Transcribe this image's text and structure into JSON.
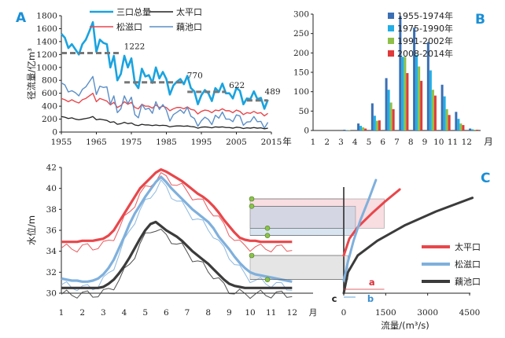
{
  "chart_data": [
    {
      "panel": "A",
      "type": "line",
      "ylabel": "径流量/亿m³",
      "x_unit": "年",
      "xlim": [
        1955,
        2015
      ],
      "ylim": [
        0,
        1800
      ],
      "x_ticks": [
        1955,
        1965,
        1975,
        1985,
        1995,
        2005,
        2015
      ],
      "y_ticks": [
        0,
        200,
        400,
        600,
        800,
        1000,
        1200,
        1400,
        1600,
        1800
      ],
      "series": [
        {
          "name": "三口总量",
          "color": "#1aa3df",
          "x_start": 1955,
          "values": [
            1520,
            1460,
            1300,
            1360,
            1280,
            1200,
            1360,
            1430,
            1560,
            1700,
            1240,
            1430,
            1380,
            1360,
            1000,
            1180,
            800,
            900,
            1180,
            1000,
            1140,
            760,
            680,
            980,
            860,
            880,
            760,
            1000,
            830,
            930,
            820,
            580,
            720,
            780,
            820,
            740,
            870,
            680,
            630,
            430,
            570,
            650,
            600,
            480,
            680,
            620,
            750,
            600,
            600,
            520,
            680,
            640,
            430,
            520,
            510,
            630,
            510,
            530,
            360,
            500
          ]
        },
        {
          "name": "松滋口",
          "color": "#e8474b",
          "x_start": 1955,
          "values": [
            520,
            500,
            470,
            500,
            470,
            450,
            500,
            520,
            560,
            600,
            470,
            520,
            500,
            480,
            420,
            460,
            380,
            410,
            470,
            430,
            460,
            380,
            360,
            430,
            400,
            400,
            370,
            420,
            380,
            400,
            380,
            330,
            360,
            380,
            380,
            360,
            390,
            350,
            340,
            280,
            320,
            340,
            330,
            300,
            340,
            330,
            360,
            330,
            330,
            300,
            340,
            320,
            270,
            300,
            290,
            320,
            290,
            300,
            250,
            290
          ]
        },
        {
          "name": "太平口",
          "color": "#222222",
          "x_start": 1955,
          "values": [
            240,
            230,
            210,
            220,
            200,
            190,
            200,
            210,
            220,
            240,
            190,
            200,
            190,
            180,
            150,
            160,
            120,
            130,
            150,
            130,
            140,
            110,
            100,
            120,
            110,
            110,
            100,
            110,
            100,
            105,
            100,
            80,
            90,
            95,
            95,
            90,
            95,
            85,
            80,
            60,
            75,
            80,
            75,
            65,
            80,
            75,
            80,
            70,
            70,
            60,
            75,
            70,
            55,
            65,
            60,
            70,
            60,
            65,
            50,
            60
          ]
        },
        {
          "name": "藕池口",
          "color": "#5b8fc7",
          "x_start": 1955,
          "values": [
            760,
            730,
            620,
            640,
            610,
            560,
            660,
            700,
            780,
            860,
            580,
            710,
            690,
            700,
            430,
            560,
            300,
            360,
            560,
            440,
            540,
            270,
            220,
            430,
            350,
            370,
            290,
            470,
            350,
            425,
            340,
            170,
            270,
            305,
            345,
            290,
            385,
            245,
            210,
            90,
            175,
            230,
            195,
            115,
            260,
            215,
            310,
            200,
            200,
            160,
            265,
            250,
            105,
            155,
            160,
            240,
            160,
            165,
            60,
            150
          ]
        }
      ],
      "annotations": [
        {
          "text": "1222",
          "value": 1222,
          "from": 1955,
          "to": 1972
        },
        {
          "text": "770",
          "value": 770,
          "from": 1973,
          "to": 1990
        },
        {
          "text": "622",
          "value": 622,
          "from": 1991,
          "to": 2002
        },
        {
          "text": "489",
          "value": 489,
          "from": 2008,
          "to": 2014
        }
      ]
    },
    {
      "panel": "B",
      "type": "bar",
      "x_unit": "月",
      "categories": [
        "1",
        "2",
        "3",
        "4",
        "5",
        "6",
        "7",
        "8",
        "9",
        "10",
        "11",
        "12"
      ],
      "ylim": [
        0,
        300
      ],
      "y_ticks": [
        0,
        50,
        100,
        150,
        200,
        250,
        300
      ],
      "legend_position": "top-right",
      "series": [
        {
          "name": "1955-1974年",
          "color": "#3a6fb5",
          "values": [
            0,
            0,
            2,
            18,
            70,
            135,
            295,
            265,
            228,
            118,
            48,
            5
          ]
        },
        {
          "name": "1975-1990年",
          "color": "#22aee6",
          "values": [
            0,
            0,
            1,
            12,
            38,
            105,
            190,
            195,
            155,
            88,
            30,
            3
          ]
        },
        {
          "name": "1991-2002年",
          "color": "#8fc04a",
          "values": [
            0,
            0,
            1,
            8,
            25,
            72,
            190,
            165,
            105,
            55,
            18,
            2
          ]
        },
        {
          "name": "2008-2014年",
          "color": "#e03a3a",
          "values": [
            0,
            0,
            0,
            5,
            26,
            55,
            148,
            128,
            90,
            40,
            14,
            2
          ]
        }
      ]
    },
    {
      "panel": "C",
      "type": "line",
      "ylabel": "水位/m",
      "xlabel": "流量/(m³/s)",
      "ylim": [
        30,
        42
      ],
      "y_ticks": [
        30,
        32,
        34,
        36,
        38,
        40,
        42
      ],
      "month_ticks": [
        "1",
        "2",
        "3",
        "4",
        "5",
        "6",
        "7",
        "8",
        "9",
        "10",
        "11",
        "12",
        "月"
      ],
      "flow_ticks": [
        0,
        1500,
        3000,
        4500
      ],
      "flow_xlim": [
        0,
        4800
      ],
      "legend_position": "right",
      "legend": [
        {
          "name": "太平口",
          "color": "#e8474b"
        },
        {
          "name": "松滋口",
          "color": "#7fb0dc"
        },
        {
          "name": "藕池口",
          "color": "#3b3b3b"
        }
      ],
      "series": [
        {
          "name": "太平口",
          "color": "#e8474b",
          "month_start": 1,
          "month_step": 0.25,
          "values": [
            34.9,
            34.9,
            34.9,
            34.9,
            35.0,
            35.0,
            35.0,
            35.1,
            35.2,
            35.5,
            36.0,
            36.8,
            37.6,
            38.4,
            39.2,
            40.0,
            40.5,
            41.0,
            41.5,
            41.8,
            41.6,
            41.3,
            41.0,
            40.7,
            40.3,
            39.9,
            39.5,
            39.2,
            38.8,
            38.3,
            37.7,
            37.0,
            36.4,
            35.8,
            35.3,
            35.1,
            35.0,
            35.0,
            34.9,
            34.9,
            34.9,
            34.9,
            34.9,
            34.9,
            34.9
          ]
        },
        {
          "name": "松滋口",
          "color": "#7fb0dc",
          "month_start": 1,
          "month_step": 0.25,
          "values": [
            31.4,
            31.3,
            31.2,
            31.2,
            31.1,
            31.1,
            31.2,
            31.4,
            31.8,
            32.4,
            33.2,
            34.3,
            35.4,
            36.6,
            37.6,
            38.4,
            39.2,
            39.9,
            40.6,
            41.1,
            40.6,
            40.0,
            39.5,
            39.0,
            38.5,
            38.0,
            37.6,
            37.2,
            36.8,
            36.2,
            35.4,
            34.8,
            34.2,
            33.5,
            32.9,
            32.4,
            32.0,
            31.8,
            31.7,
            31.6,
            31.5,
            31.4,
            31.3,
            31.2,
            31.1
          ]
        },
        {
          "name": "藕池口",
          "color": "#3b3b3b",
          "month_start": 1,
          "month_step": 0.25,
          "values": [
            30.5,
            30.5,
            30.5,
            30.5,
            30.5,
            30.5,
            30.5,
            30.5,
            30.6,
            30.9,
            31.3,
            31.9,
            32.6,
            33.4,
            34.3,
            35.2,
            36.0,
            36.6,
            36.8,
            36.4,
            36.0,
            35.7,
            35.4,
            35.0,
            34.5,
            34.0,
            33.6,
            33.2,
            32.8,
            32.3,
            31.8,
            31.3,
            30.9,
            30.7,
            30.6,
            30.5,
            30.5,
            30.5,
            30.5,
            30.5,
            30.5,
            30.5,
            30.5,
            30.5,
            30.5
          ]
        }
      ],
      "rating_curves": [
        {
          "name": "太平口",
          "color": "#e8474b",
          "points": [
            [
              0,
              33.6
            ],
            [
              200,
              35.2
            ],
            [
              500,
              36.3
            ],
            [
              1000,
              37.6
            ],
            [
              1500,
              38.8
            ],
            [
              2000,
              39.9
            ]
          ]
        },
        {
          "name": "松滋口",
          "color": "#7fb0dc",
          "points": [
            [
              0,
              31.2
            ],
            [
              150,
              33.0
            ],
            [
              350,
              35.0
            ],
            [
              600,
              37.0
            ],
            [
              900,
              39.0
            ],
            [
              1150,
              40.8
            ]
          ]
        },
        {
          "name": "藕池口",
          "color": "#3b3b3b",
          "points": [
            [
              0,
              30.0
            ],
            [
              150,
              32.0
            ],
            [
              500,
              33.6
            ],
            [
              1200,
              35.0
            ],
            [
              2200,
              36.5
            ],
            [
              3300,
              37.8
            ],
            [
              4600,
              39.1
            ]
          ]
        }
      ],
      "bands": [
        {
          "series": "太平口",
          "color": "#f3c1c8",
          "y_top": 39.0,
          "y_bottom": 36.2,
          "label": "a",
          "flow_width": 1450
        },
        {
          "series": "松滋口",
          "color": "#b8cfe6",
          "y_top": 38.3,
          "y_bottom": 35.5,
          "label": "b",
          "flow_width": 420
        },
        {
          "series": "藕池口",
          "color": "#cfcfcf",
          "y_top": 33.6,
          "y_bottom": 31.3,
          "label": "c",
          "flow_width": 150
        }
      ]
    }
  ]
}
